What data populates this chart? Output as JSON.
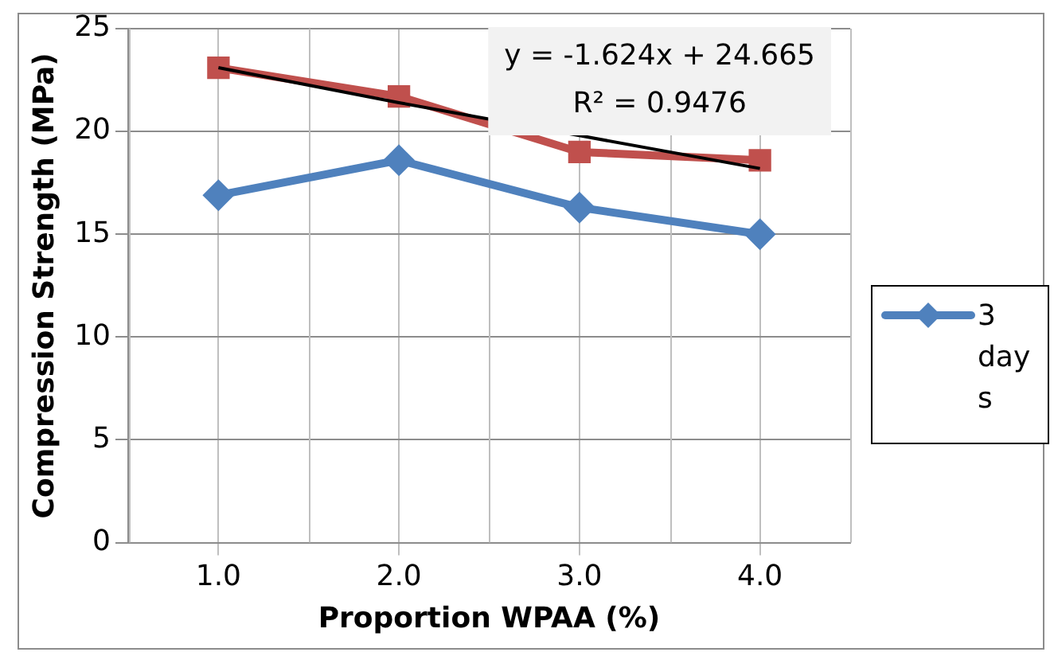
{
  "chart_data": {
    "type": "line",
    "xlabel": "Proportion WPAA (%)",
    "ylabel": "Compression Strength (MPa)",
    "categories": [
      "1.0",
      "2.0",
      "3.0",
      "4.0"
    ],
    "series": [
      {
        "name": "3 days",
        "color": "#4f81bd",
        "values": [
          16.9,
          18.6,
          16.3,
          15.0
        ],
        "marker": "diamond"
      },
      {
        "color": "#c0504d",
        "values": [
          23.1,
          21.7,
          19.0,
          18.6
        ],
        "marker": "square"
      },
      {
        "type": "line",
        "color": "#000000",
        "values": [
          23.1,
          21.4,
          19.8,
          18.2
        ],
        "marker": "none"
      }
    ],
    "ylim": [
      0,
      25
    ],
    "yticks": [
      0,
      5,
      10,
      15,
      20,
      25
    ],
    "grid": true,
    "legend": "right",
    "annotations": [
      "y = -1.624x + 24.665",
      "R² = 0.9476"
    ]
  }
}
